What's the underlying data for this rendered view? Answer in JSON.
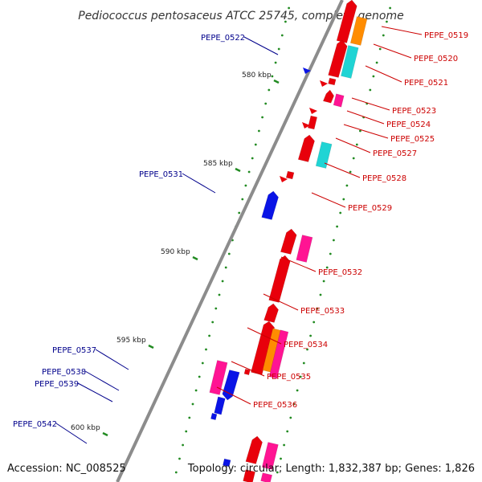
{
  "title": "Pediococcus pentosaceus ATCC 25745, complete genome",
  "footer": {
    "accession": "Accession: NC_008525",
    "summary": "Topology: circular; Length: 1,832,387 bp; Genes: 1,826"
  },
  "colors": {
    "backbone": "#8c8c8c",
    "forward_strand_gene": "#e8000b",
    "reverse_strand_gene": "#0a14e6",
    "forward_label": "#cc0000",
    "reverse_label": "#00008b",
    "cyan_feature": "#20d4d4",
    "orange_feature": "#ff8c00",
    "magenta_feature": "#ff1493",
    "tick_dots": "#228b22"
  },
  "ruler_marks": [
    {
      "kbp": 580,
      "label": "580 kbp"
    },
    {
      "kbp": 585,
      "label": "585 kbp"
    },
    {
      "kbp": 590,
      "label": "590 kbp"
    },
    {
      "kbp": 595,
      "label": "595 kbp"
    },
    {
      "kbp": 600,
      "label": "600 kbp"
    }
  ],
  "forward_gene_labels": [
    "PEPE_0519",
    "PEPE_0520",
    "PEPE_0521",
    "PEPE_0523",
    "PEPE_0524",
    "PEPE_0525",
    "PEPE_0527",
    "PEPE_0528",
    "PEPE_0529",
    "PEPE_0532",
    "PEPE_0533",
    "PEPE_0534",
    "PEPE_0535",
    "PEPE_0536"
  ],
  "reverse_gene_labels": [
    "PEPE_0522",
    "PEPE_0531",
    "PEPE_0537",
    "PEPE_0538",
    "PEPE_0539",
    "PEPE_0542"
  ]
}
